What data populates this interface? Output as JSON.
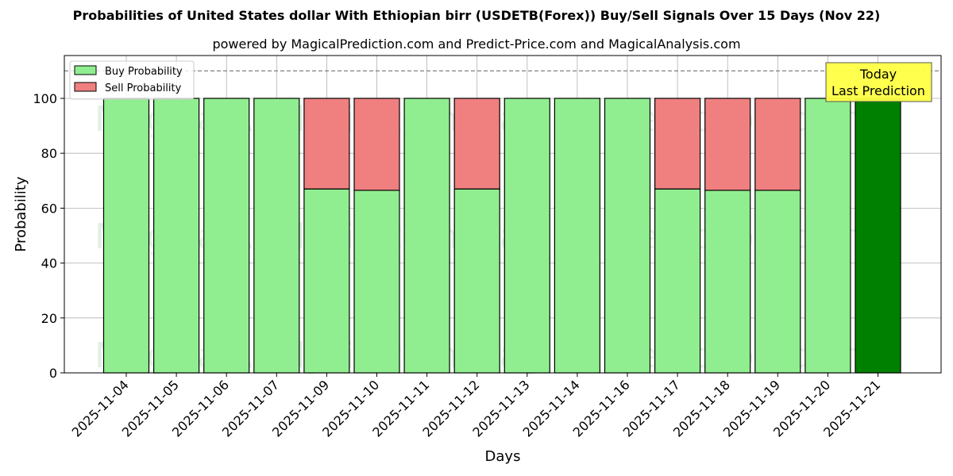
{
  "header": {
    "title": "Probabilities of United States dollar With Ethiopian birr (USDETB(Forex)) Buy/Sell Signals Over 15 Days (Nov 22)",
    "subtitle": "powered by MagicalPrediction.com and Predict-Price.com and MagicalAnalysis.com"
  },
  "legend": {
    "buy_label": "Buy Probability",
    "sell_label": "Sell Probability"
  },
  "annotation": {
    "line1": "Today",
    "line2": "Last Prediction"
  },
  "watermarks": [
    "MagicalAnalysis.com",
    "MagicalPrediction.com"
  ],
  "colors": {
    "buy": "#90ee90",
    "sell": "#f08080",
    "today": "#008000",
    "annotation_bg": "#ffff44",
    "dashed_line": "#808080"
  },
  "chart_data": {
    "type": "bar",
    "stacked": true,
    "title": "Probabilities of United States dollar With Ethiopian birr (USDETB(Forex)) Buy/Sell Signals Over 15 Days (Nov 22)",
    "subtitle": "powered by MagicalPrediction.com and Predict-Price.com and MagicalAnalysis.com",
    "xlabel": "Days",
    "ylabel": "Probability",
    "ylim": [
      0,
      115.6
    ],
    "yticks": [
      0,
      20,
      40,
      60,
      80,
      100
    ],
    "grid": true,
    "legend_position": "upper left",
    "reference_line": {
      "y": 110,
      "style": "dashed",
      "color": "#808080"
    },
    "categories": [
      "2025-11-04",
      "2025-11-05",
      "2025-11-06",
      "2025-11-07",
      "2025-11-09",
      "2025-11-10",
      "2025-11-11",
      "2025-11-12",
      "2025-11-13",
      "2025-11-14",
      "2025-11-16",
      "2025-11-17",
      "2025-11-18",
      "2025-11-19",
      "2025-11-20",
      "2025-11-21"
    ],
    "series": [
      {
        "name": "Buy Probability",
        "color": "#90ee90",
        "values": [
          100,
          100,
          100,
          100,
          67,
          66.5,
          100,
          67,
          100,
          100,
          100,
          67,
          66.5,
          66.5,
          100,
          100
        ]
      },
      {
        "name": "Sell Probability",
        "color": "#f08080",
        "values": [
          0,
          0,
          0,
          0,
          33,
          33.5,
          0,
          33,
          0,
          0,
          0,
          33,
          33.5,
          33.5,
          0,
          0
        ]
      }
    ],
    "highlight": {
      "category": "2025-11-21",
      "color": "#008000",
      "annotation": "Today\nLast Prediction"
    }
  }
}
